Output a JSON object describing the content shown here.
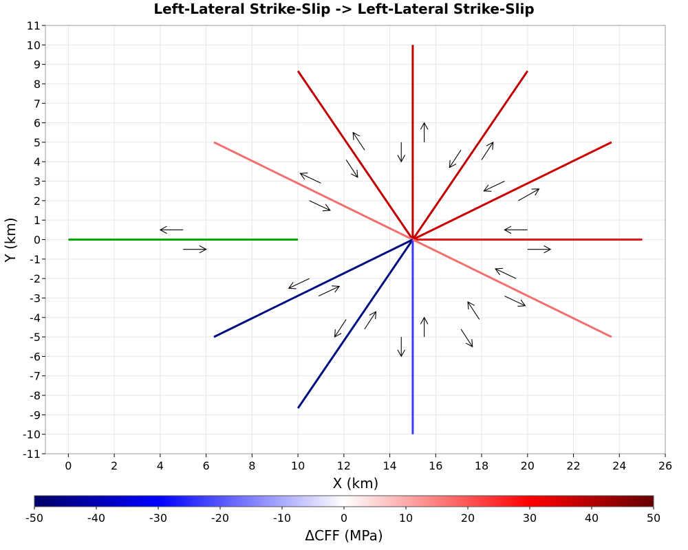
{
  "chart_data": {
    "type": "line",
    "title": "Left-Lateral Strike-Slip -> Left-Lateral Strike-Slip",
    "xlabel": "X (km)",
    "ylabel": "Y (km)",
    "xlim": [
      -1,
      26
    ],
    "ylim": [
      -11,
      11
    ],
    "xticks": [
      0,
      2,
      4,
      6,
      8,
      10,
      12,
      14,
      16,
      18,
      20,
      22,
      24,
      26
    ],
    "yticks": [
      -11,
      -10,
      -9,
      -8,
      -7,
      -6,
      -5,
      -4,
      -3,
      -2,
      -1,
      0,
      1,
      2,
      3,
      4,
      5,
      6,
      7,
      8,
      9,
      10,
      11
    ],
    "grid": true,
    "source_fault": {
      "color": "#00aa00",
      "points": [
        [
          0,
          0
        ],
        [
          10,
          0
        ]
      ],
      "slip_arrows": [
        {
          "from": [
            5.0,
            0.5
          ],
          "to": [
            4.0,
            0.5
          ]
        },
        {
          "from": [
            5.0,
            -0.5
          ],
          "to": [
            6.0,
            -0.5
          ]
        }
      ]
    },
    "receiver_faults": [
      {
        "points": [
          [
            15,
            0
          ],
          [
            25.0,
            0
          ]
        ],
        "dcff": 30,
        "color": "#e41a1a"
      },
      {
        "points": [
          [
            15,
            0
          ],
          [
            23.66,
            5.0
          ]
        ],
        "dcff": 35,
        "color": "#cc0000"
      },
      {
        "points": [
          [
            15,
            0
          ],
          [
            20.0,
            8.66
          ]
        ],
        "dcff": 38,
        "color": "#c00000"
      },
      {
        "points": [
          [
            15,
            0
          ],
          [
            15.0,
            10.0
          ]
        ],
        "dcff": 38,
        "color": "#c00000"
      },
      {
        "points": [
          [
            15,
            0
          ],
          [
            10.0,
            8.66
          ]
        ],
        "dcff": 38,
        "color": "#c00000"
      },
      {
        "points": [
          [
            15,
            0
          ],
          [
            6.34,
            5.0
          ]
        ],
        "dcff": 18,
        "color": "#f07070"
      },
      {
        "points": [
          [
            15,
            0
          ],
          [
            6.34,
            -5.0
          ]
        ],
        "dcff": -48,
        "color": "#000e80"
      },
      {
        "points": [
          [
            15,
            0
          ],
          [
            10.0,
            -8.66
          ]
        ],
        "dcff": -48,
        "color": "#000e80"
      },
      {
        "points": [
          [
            15,
            0
          ],
          [
            15.0,
            -10.0
          ]
        ],
        "dcff": -22,
        "color": "#3a3aff"
      },
      {
        "points": [
          [
            15,
            0
          ],
          [
            23.66,
            -5.0
          ]
        ],
        "dcff": 18,
        "color": "#f07070"
      }
    ],
    "slip_arrows": [
      {
        "from": [
          20.0,
          0.5
        ],
        "to": [
          19.0,
          0.5
        ]
      },
      {
        "from": [
          20.0,
          -0.5
        ],
        "to": [
          21.0,
          -0.5
        ]
      },
      {
        "from": [
          19.0,
          3.0
        ],
        "to": [
          18.1,
          2.5
        ]
      },
      {
        "from": [
          19.6,
          2.0
        ],
        "to": [
          20.5,
          2.6
        ]
      },
      {
        "from": [
          17.1,
          4.6
        ],
        "to": [
          16.6,
          3.7
        ]
      },
      {
        "from": [
          18.0,
          4.1
        ],
        "to": [
          18.5,
          5.0
        ]
      },
      {
        "from": [
          15.5,
          5.0
        ],
        "to": [
          15.5,
          6.0
        ]
      },
      {
        "from": [
          14.5,
          5.0
        ],
        "to": [
          14.5,
          4.0
        ]
      },
      {
        "from": [
          12.9,
          4.6
        ],
        "to": [
          12.4,
          5.5
        ]
      },
      {
        "from": [
          12.1,
          4.1
        ],
        "to": [
          12.6,
          3.2
        ]
      },
      {
        "from": [
          11.0,
          2.9
        ],
        "to": [
          10.1,
          3.4
        ]
      },
      {
        "from": [
          10.5,
          2.0
        ],
        "to": [
          11.4,
          1.5
        ]
      },
      {
        "from": [
          10.5,
          -2.0
        ],
        "to": [
          9.6,
          -2.5
        ]
      },
      {
        "from": [
          10.9,
          -2.9
        ],
        "to": [
          11.8,
          -2.4
        ]
      },
      {
        "from": [
          12.1,
          -4.1
        ],
        "to": [
          11.6,
          -5.0
        ]
      },
      {
        "from": [
          12.9,
          -4.6
        ],
        "to": [
          13.4,
          -3.7
        ]
      },
      {
        "from": [
          14.5,
          -5.0
        ],
        "to": [
          14.5,
          -6.0
        ]
      },
      {
        "from": [
          15.5,
          -5.0
        ],
        "to": [
          15.5,
          -4.0
        ]
      },
      {
        "from": [
          17.1,
          -4.6
        ],
        "to": [
          17.6,
          -5.5
        ]
      },
      {
        "from": [
          17.9,
          -4.1
        ],
        "to": [
          17.4,
          -3.2
        ]
      },
      {
        "from": [
          19.5,
          -2.0
        ],
        "to": [
          18.6,
          -1.5
        ]
      },
      {
        "from": [
          19.0,
          -2.9
        ],
        "to": [
          19.9,
          -3.4
        ]
      }
    ],
    "colorbar": {
      "label": "ΔCFF (MPa)",
      "min": -50,
      "max": 50,
      "ticks": [
        -50,
        -40,
        -30,
        -20,
        -10,
        0,
        10,
        20,
        30,
        40,
        50
      ],
      "stops": [
        {
          "value": -50,
          "color": "#000066"
        },
        {
          "value": -30,
          "color": "#0000ff"
        },
        {
          "value": 0,
          "color": "#ffffff"
        },
        {
          "value": 30,
          "color": "#ff0000"
        },
        {
          "value": 50,
          "color": "#660000"
        }
      ]
    }
  }
}
